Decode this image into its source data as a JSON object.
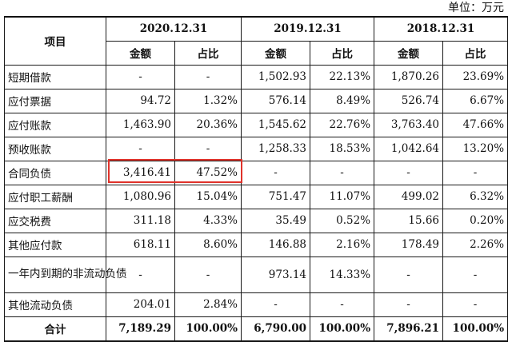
{
  "unit_label": "单位：万元",
  "header": {
    "item_label": "项目",
    "years": [
      "2020.12.31",
      "2019.12.31",
      "2018.12.31"
    ],
    "amount_label": "金额",
    "ratio_label": "占比"
  },
  "rows": [
    {
      "label": "短期借款",
      "cells": [
        "-",
        "-",
        "1,502.93",
        "22.13%",
        "1,870.26",
        "23.69%"
      ]
    },
    {
      "label": "应付票据",
      "cells": [
        "94.72",
        "1.32%",
        "576.14",
        "8.49%",
        "526.74",
        "6.67%"
      ]
    },
    {
      "label": "应付账款",
      "cells": [
        "1,463.90",
        "20.36%",
        "1,545.62",
        "22.76%",
        "3,763.40",
        "47.66%"
      ]
    },
    {
      "label": "预收账款",
      "cells": [
        "-",
        "-",
        "1,258.33",
        "18.53%",
        "1,042.64",
        "13.20%"
      ]
    },
    {
      "label": "合同负债",
      "cells": [
        "3,416.41",
        "47.52%",
        "-",
        "-",
        "-",
        "-"
      ]
    },
    {
      "label": "应付职工薪酬",
      "cells": [
        "1,080.96",
        "15.04%",
        "751.47",
        "11.07%",
        "499.02",
        "6.32%"
      ]
    },
    {
      "label": "应交税费",
      "cells": [
        "311.18",
        "4.33%",
        "35.49",
        "0.52%",
        "15.66",
        "0.20%"
      ]
    },
    {
      "label": "其他应付款",
      "cells": [
        "618.11",
        "8.60%",
        "146.88",
        "2.16%",
        "178.49",
        "2.26%"
      ]
    },
    {
      "label": "一年内到期的非流动负债",
      "cells": [
        "-",
        "-",
        "973.14",
        "14.33%",
        "-",
        "-"
      ]
    },
    {
      "label": "其他流动负债",
      "cells": [
        "204.01",
        "2.84%",
        "-",
        "-",
        "-",
        "-"
      ]
    }
  ],
  "total": {
    "label": "合计",
    "cells": [
      "7,189.29",
      "100.00%",
      "6,790.00",
      "100.00%",
      "7,896.21",
      "100.00%"
    ]
  },
  "highlight_color": "#e0322a"
}
